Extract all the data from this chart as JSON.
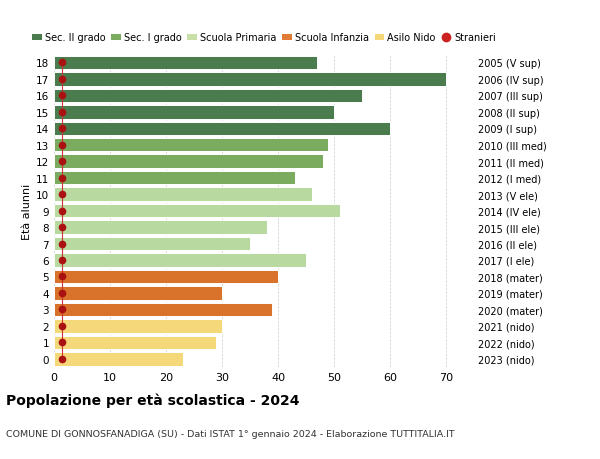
{
  "ages": [
    18,
    17,
    16,
    15,
    14,
    13,
    12,
    11,
    10,
    9,
    8,
    7,
    6,
    5,
    4,
    3,
    2,
    1,
    0
  ],
  "right_labels": [
    "2005 (V sup)",
    "2006 (IV sup)",
    "2007 (III sup)",
    "2008 (II sup)",
    "2009 (I sup)",
    "2010 (III med)",
    "2011 (II med)",
    "2012 (I med)",
    "2013 (V ele)",
    "2014 (IV ele)",
    "2015 (III ele)",
    "2016 (II ele)",
    "2017 (I ele)",
    "2018 (mater)",
    "2019 (mater)",
    "2020 (mater)",
    "2021 (nido)",
    "2022 (nido)",
    "2023 (nido)"
  ],
  "values": [
    47,
    70,
    55,
    50,
    60,
    49,
    48,
    43,
    46,
    51,
    38,
    35,
    45,
    40,
    30,
    39,
    30,
    29,
    23
  ],
  "bar_colors": [
    "#4a7c4e",
    "#4a7c4e",
    "#4a7c4e",
    "#4a7c4e",
    "#4a7c4e",
    "#7aab5e",
    "#7aab5e",
    "#7aab5e",
    "#b8d9a0",
    "#b8d9a0",
    "#b8d9a0",
    "#b8d9a0",
    "#b8d9a0",
    "#d9722a",
    "#d9722a",
    "#d9722a",
    "#f5d87a",
    "#f5d87a",
    "#f5d87a"
  ],
  "legend_labels": [
    "Sec. II grado",
    "Sec. I grado",
    "Scuola Primaria",
    "Scuola Infanzia",
    "Asilo Nido",
    "Stranieri"
  ],
  "legend_colors": [
    "#4a7c4e",
    "#7aab5e",
    "#c8dfa8",
    "#e07c35",
    "#f5d87a",
    "#cc2222"
  ],
  "xlabel_vals": [
    0,
    10,
    20,
    30,
    40,
    50,
    60,
    70
  ],
  "xlim": [
    0,
    75
  ],
  "ylim": [
    -0.5,
    18.5
  ],
  "ylabel": "Età alunni",
  "title": "Popolazione per età scolastica - 2024",
  "subtitle": "COMUNE DI GONNOSFANADIGA (SU) - Dati ISTAT 1° gennaio 2024 - Elaborazione TUTTITALIA.IT",
  "background_color": "#ffffff",
  "grid_color": "#cccccc",
  "stranieri_x": 1.5,
  "stranieri_color": "#aa1111",
  "stranieri_line_color": "#cc3333"
}
